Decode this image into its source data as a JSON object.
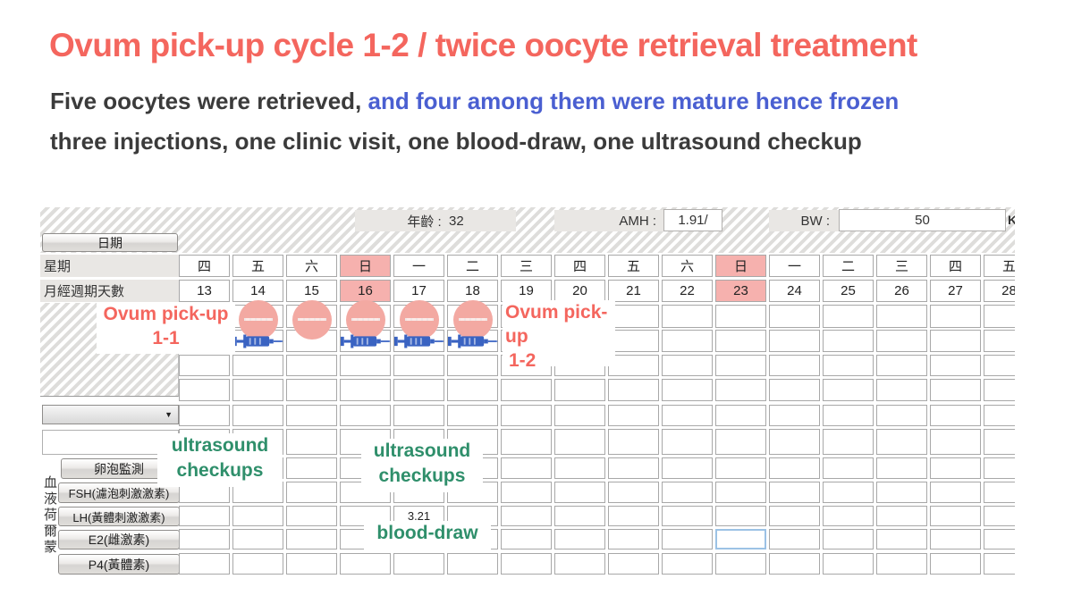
{
  "header": {
    "title": "Ovum pick-up cycle 1-2 / twice oocyte retrieval treatment",
    "subtitle_plain": "Five oocytes were retrieved, ",
    "subtitle_highlight": "and four among them were mature hence frozen",
    "subtitle_line2": "three injections, one clinic visit, one blood-draw, one ultrasound checkup"
  },
  "info_bar": {
    "age_label": "年齡 :",
    "age_value": "32",
    "amh_label": "AMH :",
    "amh_value": "1.91/",
    "bw_label": "BW :",
    "bw_value": "50",
    "bw_unit": "K"
  },
  "sidebar": {
    "date_button": "日期",
    "weekday_label": "星期",
    "cycle_day_label": "月經週期天數",
    "vertical_label": "血液荷爾蒙",
    "monitor_button": "卵泡監測",
    "fsh_button": "FSH(濾泡刺激激素)",
    "lh_button": "LH(黃體刺激激素)",
    "e2_button": "E2(雌激素)",
    "p4_button": "P4(黃體素)"
  },
  "grid": {
    "weekdays": [
      "四",
      "五",
      "六",
      "日",
      "一",
      "二",
      "三",
      "四",
      "五",
      "六",
      "日",
      "一",
      "二",
      "三",
      "四",
      "五"
    ],
    "cycle_days": [
      "13",
      "14",
      "15",
      "16",
      "17",
      "18",
      "19",
      "20",
      "21",
      "22",
      "23",
      "24",
      "25",
      "26",
      "27",
      "28"
    ],
    "highlight_columns": [
      3,
      10
    ],
    "circle_columns": [
      1,
      2,
      3,
      4,
      5
    ],
    "syringe_columns": [
      1,
      3,
      4,
      5
    ],
    "lh_value": {
      "column": 4,
      "text": "3.21"
    },
    "selected_cell": {
      "row": "e2",
      "column": 10
    }
  },
  "annotations": {
    "pickup1_line1": "Ovum pick-up",
    "pickup1_line2": "1-1",
    "pickup2_line1": "Ovum pick-up",
    "pickup2_line2": "1-2",
    "ultrasound1_line1": "ultrasound",
    "ultrasound1_line2": "checkups",
    "ultrasound2_line1": "ultrasound",
    "ultrasound2_line2": "checkups",
    "blood_draw": "blood-draw"
  },
  "colors": {
    "title": "#f4665e",
    "subtitle_highlight": "#4a5fd1",
    "annotation_green": "#2f8f6b",
    "marker_pink": "#f3a9a2",
    "column_highlight_pink": "#f6b1ae",
    "syringe_blue": "#3a63c2",
    "selected_cell_border": "#9cc2e5"
  }
}
